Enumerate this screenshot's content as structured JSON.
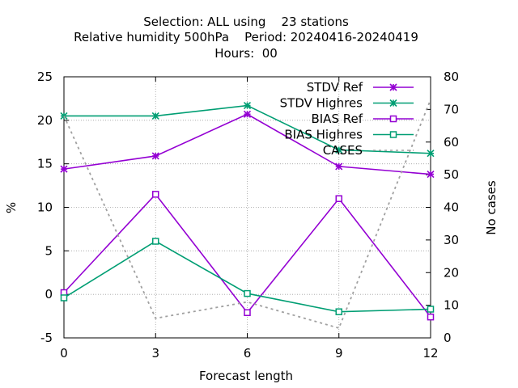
{
  "title_lines": [
    "Selection: ALL using    23 stations",
    "Relative humidity 500hPa    Period: 20240416-20240419",
    "Hours:  00"
  ],
  "chart_data": {
    "type": "line",
    "x": [
      0,
      3,
      6,
      9,
      12
    ],
    "xlabel": "Forecast length",
    "ylabel": "%",
    "y2label": "No cases",
    "xlim": [
      0,
      12
    ],
    "ylim": [
      -5,
      25
    ],
    "y2lim": [
      0,
      80
    ],
    "xticks": [
      "0",
      "3",
      "6",
      "9",
      "12"
    ],
    "yticks": [
      "-5",
      "0",
      "5",
      "10",
      "15",
      "20",
      "25"
    ],
    "y2ticks": [
      "0",
      "10",
      "20",
      "30",
      "40",
      "50",
      "60",
      "70",
      "80"
    ],
    "grid": true,
    "legend_position": "top-right",
    "series": [
      {
        "name": "STDV Ref",
        "axis": "y",
        "color": "#9400d3",
        "marker": "star",
        "dash": false,
        "values": [
          14.4,
          15.9,
          20.7,
          14.7,
          13.8
        ]
      },
      {
        "name": "STDV Highres",
        "axis": "y",
        "color": "#009e73",
        "marker": "star",
        "dash": false,
        "values": [
          20.5,
          20.5,
          21.7,
          16.6,
          16.2
        ]
      },
      {
        "name": "BIAS Ref",
        "axis": "y",
        "color": "#9400d3",
        "marker": "square",
        "dash": false,
        "values": [
          0.2,
          11.5,
          -2.1,
          11.0,
          -2.6
        ]
      },
      {
        "name": "BIAS Highres",
        "axis": "y",
        "color": "#009e73",
        "marker": "square",
        "dash": false,
        "values": [
          -0.4,
          6.1,
          0.1,
          -2.0,
          -1.7
        ]
      },
      {
        "name": "CASES",
        "axis": "y2",
        "color": "#a0a0a0",
        "marker": "none",
        "dash": true,
        "values": [
          68,
          6,
          11,
          3,
          73
        ]
      }
    ]
  }
}
